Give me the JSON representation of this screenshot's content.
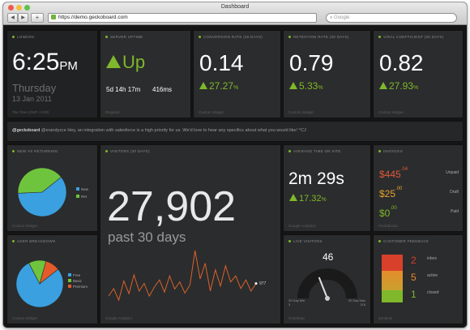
{
  "browser": {
    "title": "Dashboard",
    "url": "https://demo.geckoboard.com",
    "search_placeholder": "Google",
    "back": "◀",
    "forward": "▶",
    "add": "+"
  },
  "widgets": {
    "clock": {
      "title": "London",
      "time": "6:25",
      "ampm": "PM",
      "day": "Thursday",
      "date": "13 Jan 2011",
      "footer": "The Time (GMT +0:00)"
    },
    "uptime": {
      "title": "Server uptime",
      "status": "Up",
      "duration": "5d 14h 17m",
      "response": "416ms",
      "footer": "Pingdom"
    },
    "conversion": {
      "title": "Conversion rate (30 days)",
      "value": "0.14",
      "change": "27.27",
      "unit": "%",
      "footer": "Custom Widget"
    },
    "retention": {
      "title": "Retention rate (30 days)",
      "value": "0.79",
      "change": "5.33",
      "unit": "%",
      "footer": "Custom Widget"
    },
    "viral": {
      "title": "Viral coefficient (30 days)",
      "value": "0.82",
      "change": "27.93",
      "unit": "%",
      "footer": "Custom Widget"
    },
    "twitter": {
      "handle": "@geckoboard",
      "text": "@erandyzce Hey, an integration with salesforce is a high priority for us. We'd love to hear any specifics about what you would like! ^CJ"
    },
    "new_returning": {
      "title": "New vs returning",
      "legend": [
        "New",
        "Ret"
      ],
      "values": [
        60,
        40
      ],
      "colors": [
        "#3aa0e0",
        "#6fc43d"
      ],
      "footer": "Custom Widget"
    },
    "visitors": {
      "title": "Visitors (30 days)",
      "value": "27,902",
      "label": "past 30 days",
      "last": "977",
      "footer": "Google Analytics",
      "series": [
        30,
        45,
        22,
        60,
        35,
        72,
        40,
        55,
        30,
        48,
        62,
        38,
        70,
        44,
        58,
        36,
        52,
        120,
        64,
        95,
        40,
        82,
        50,
        90,
        58,
        70,
        45,
        62,
        40,
        55
      ]
    },
    "time_on_site": {
      "title": "Average time on site",
      "value": "2m 29s",
      "change": "17.32",
      "unit": "%",
      "footer": "Google Analytics"
    },
    "invoices": {
      "title": "Invoices",
      "rows": [
        {
          "amount": "$445",
          "cents": ".04",
          "label": "Unpaid",
          "color": "#e05a3a"
        },
        {
          "amount": "$25",
          "cents": ".00",
          "label": "Draft",
          "color": "#e8a22b"
        },
        {
          "amount": "$0",
          "cents": ".00",
          "label": "Paid",
          "color": "#7fb82a"
        }
      ],
      "footer": "FreshBooks"
    },
    "user_breakdown": {
      "title": "User breakdown",
      "legend": [
        "Free",
        "Basic",
        "Premium"
      ],
      "values": [
        78,
        12,
        10
      ],
      "colors": [
        "#3aa0e0",
        "#6fc43d",
        "#e55a2b"
      ],
      "footer": "Custom Widget"
    },
    "live_visitors": {
      "title": "Live visitors",
      "value": "46",
      "min_label": "30 Day Min",
      "min_value": "3",
      "max_label": "30 Day Max",
      "max_value": "116",
      "level": 0.38,
      "footer": "Chartbeat"
    },
    "feedback": {
      "title": "Customer feedback",
      "rows": [
        {
          "value": "2",
          "label": "inbox",
          "color": "#d9402b"
        },
        {
          "value": "5",
          "label": "active",
          "color": "#e58b2b"
        },
        {
          "value": "1",
          "label": "closed",
          "color": "#7fb82a"
        }
      ],
      "footer": "Zendesk"
    }
  }
}
